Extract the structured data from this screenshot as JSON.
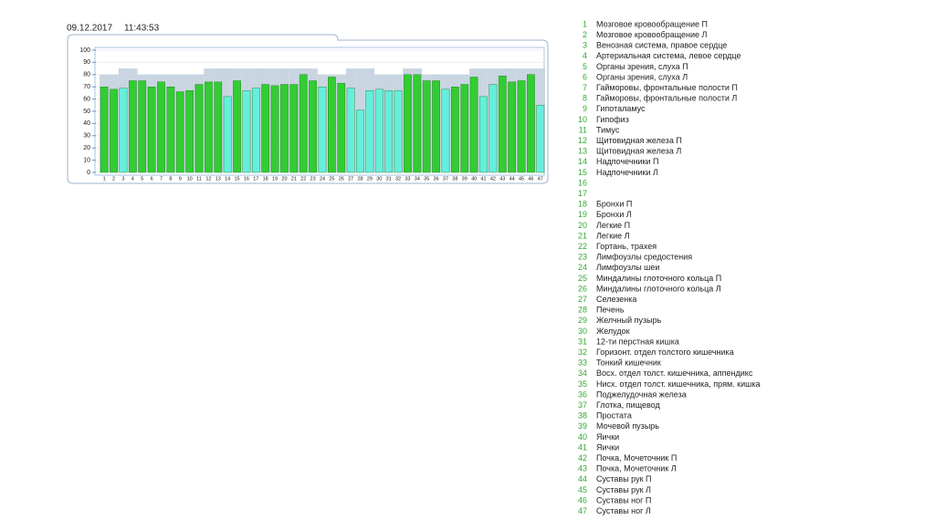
{
  "date": "09.12.2017",
  "time": "11:43:53",
  "chart_data": {
    "type": "bar",
    "categories": [
      "1",
      "2",
      "3",
      "4",
      "5",
      "6",
      "7",
      "8",
      "9",
      "10",
      "11",
      "12",
      "13",
      "14",
      "15",
      "16",
      "17",
      "18",
      "19",
      "20",
      "21",
      "22",
      "23",
      "24",
      "25",
      "26",
      "27",
      "28",
      "29",
      "30",
      "31",
      "32",
      "33",
      "34",
      "35",
      "36",
      "37",
      "38",
      "39",
      "40",
      "41",
      "42",
      "43",
      "44",
      "45",
      "46",
      "47"
    ],
    "series": [
      {
        "color": "#c9d5e1",
        "values": [
          80,
          80,
          85,
          85,
          80,
          80,
          80,
          80,
          80,
          80,
          80,
          85,
          85,
          85,
          85,
          85,
          85,
          85,
          85,
          85,
          85,
          85,
          85,
          80,
          80,
          80,
          85,
          85,
          85,
          80,
          80,
          80,
          85,
          85,
          80,
          80,
          80,
          80,
          80,
          85,
          85,
          85,
          85,
          85,
          85,
          85,
          85
        ]
      },
      {
        "colors": [
          "#33cc33",
          "#33cc33",
          "#66eedd",
          "#33cc33",
          "#33cc33",
          "#33cc33",
          "#33cc33",
          "#33cc33",
          "#33cc33",
          "#33cc33",
          "#33cc33",
          "#33cc33",
          "#33cc33",
          "#66eedd",
          "#33cc33",
          "#66eedd",
          "#66eedd",
          "#33cc33",
          "#33cc33",
          "#33cc33",
          "#33cc33",
          "#33cc33",
          "#33cc33",
          "#66eedd",
          "#33cc33",
          "#33cc33",
          "#66eedd",
          "#66eedd",
          "#66eedd",
          "#66eedd",
          "#66eedd",
          "#66eedd",
          "#33cc33",
          "#33cc33",
          "#33cc33",
          "#33cc33",
          "#66eedd",
          "#33cc33",
          "#33cc33",
          "#33cc33",
          "#66eedd",
          "#66eedd",
          "#33cc33",
          "#33cc33",
          "#33cc33",
          "#33cc33",
          "#66eedd"
        ],
        "values": [
          70,
          68,
          69,
          75,
          75,
          70,
          74,
          70,
          66,
          67,
          72,
          74,
          74,
          62,
          75,
          67,
          69,
          72,
          71,
          72,
          72,
          80,
          75,
          70,
          78,
          73,
          69,
          51,
          67,
          68,
          67,
          67,
          80,
          80,
          75,
          75,
          68,
          70,
          72,
          78,
          62,
          72,
          79,
          74,
          75,
          80,
          55
        ]
      }
    ],
    "ylim": [
      0,
      100
    ],
    "yticks": [
      0,
      10,
      20,
      30,
      40,
      50,
      60,
      70,
      80,
      90,
      100
    ],
    "grid": true
  },
  "legend": [
    {
      "num": "1",
      "label": "Мозговое кровообращение П"
    },
    {
      "num": "2",
      "label": "Мозговое кровообращение Л"
    },
    {
      "num": "3",
      "label": "Венозная система, правое сердце"
    },
    {
      "num": "4",
      "label": "Артериальная система, левое сердце"
    },
    {
      "num": "5",
      "label": "Органы зрения, слуха П"
    },
    {
      "num": "6",
      "label": "Органы зрения, слуха Л"
    },
    {
      "num": "7",
      "label": "Гайморовы, фронтальные полости П"
    },
    {
      "num": "8",
      "label": "Гайморовы, фронтальные полости Л"
    },
    {
      "num": "9",
      "label": "Гипоталамус"
    },
    {
      "num": "10",
      "label": "Гипофиз"
    },
    {
      "num": "11",
      "label": "Тимус"
    },
    {
      "num": "12",
      "label": "Щитовидная железа П"
    },
    {
      "num": "13",
      "label": "Щитовидная железа Л"
    },
    {
      "num": "14",
      "label": "Надпочечники П"
    },
    {
      "num": "15",
      "label": "Надпочечники Л"
    },
    {
      "num": "16",
      "label": null
    },
    {
      "num": "17",
      "label": null
    },
    {
      "num": "18",
      "label": "Бронхи П"
    },
    {
      "num": "19",
      "label": "Бронхи Л"
    },
    {
      "num": "20",
      "label": "Легкие П"
    },
    {
      "num": "21",
      "label": "Легкие Л"
    },
    {
      "num": "22",
      "label": "Гортань, трахея"
    },
    {
      "num": "23",
      "label": "Лимфоузлы средостения"
    },
    {
      "num": "24",
      "label": "Лимфоузлы шеи"
    },
    {
      "num": "25",
      "label": "Миндалины глоточного кольца П"
    },
    {
      "num": "26",
      "label": "Миндалины глоточного кольца Л"
    },
    {
      "num": "27",
      "label": "Селезенка"
    },
    {
      "num": "28",
      "label": "Печень"
    },
    {
      "num": "29",
      "label": "Желчный пузырь"
    },
    {
      "num": "30",
      "label": "Желудок"
    },
    {
      "num": "31",
      "label": "12-ти перстная кишка"
    },
    {
      "num": "32",
      "label": "Горизонт. отдел толстого кишечника"
    },
    {
      "num": "33",
      "label": "Тонкий кишечник"
    },
    {
      "num": "34",
      "label": "Восх. отдел толст. кишечника, аппендикс"
    },
    {
      "num": "35",
      "label": "Нисх. отдел толст. кишечника, прям. кишка"
    },
    {
      "num": "36",
      "label": "Поджелудочная железа"
    },
    {
      "num": "37",
      "label": "Глотка, пищевод"
    },
    {
      "num": "38",
      "label": "Простата"
    },
    {
      "num": "39",
      "label": "Мочевой пузырь"
    },
    {
      "num": "40",
      "label": "Яички"
    },
    {
      "num": "41",
      "label": "Яички"
    },
    {
      "num": "42",
      "label": "Почка, Мочеточник П"
    },
    {
      "num": "43",
      "label": "Почка, Мочеточник Л"
    },
    {
      "num": "44",
      "label": "Суставы рук П"
    },
    {
      "num": "45",
      "label": "Суставы рук Л"
    },
    {
      "num": "46",
      "label": "Суставы ног П"
    },
    {
      "num": "47",
      "label": "Суставы ног Л"
    }
  ]
}
